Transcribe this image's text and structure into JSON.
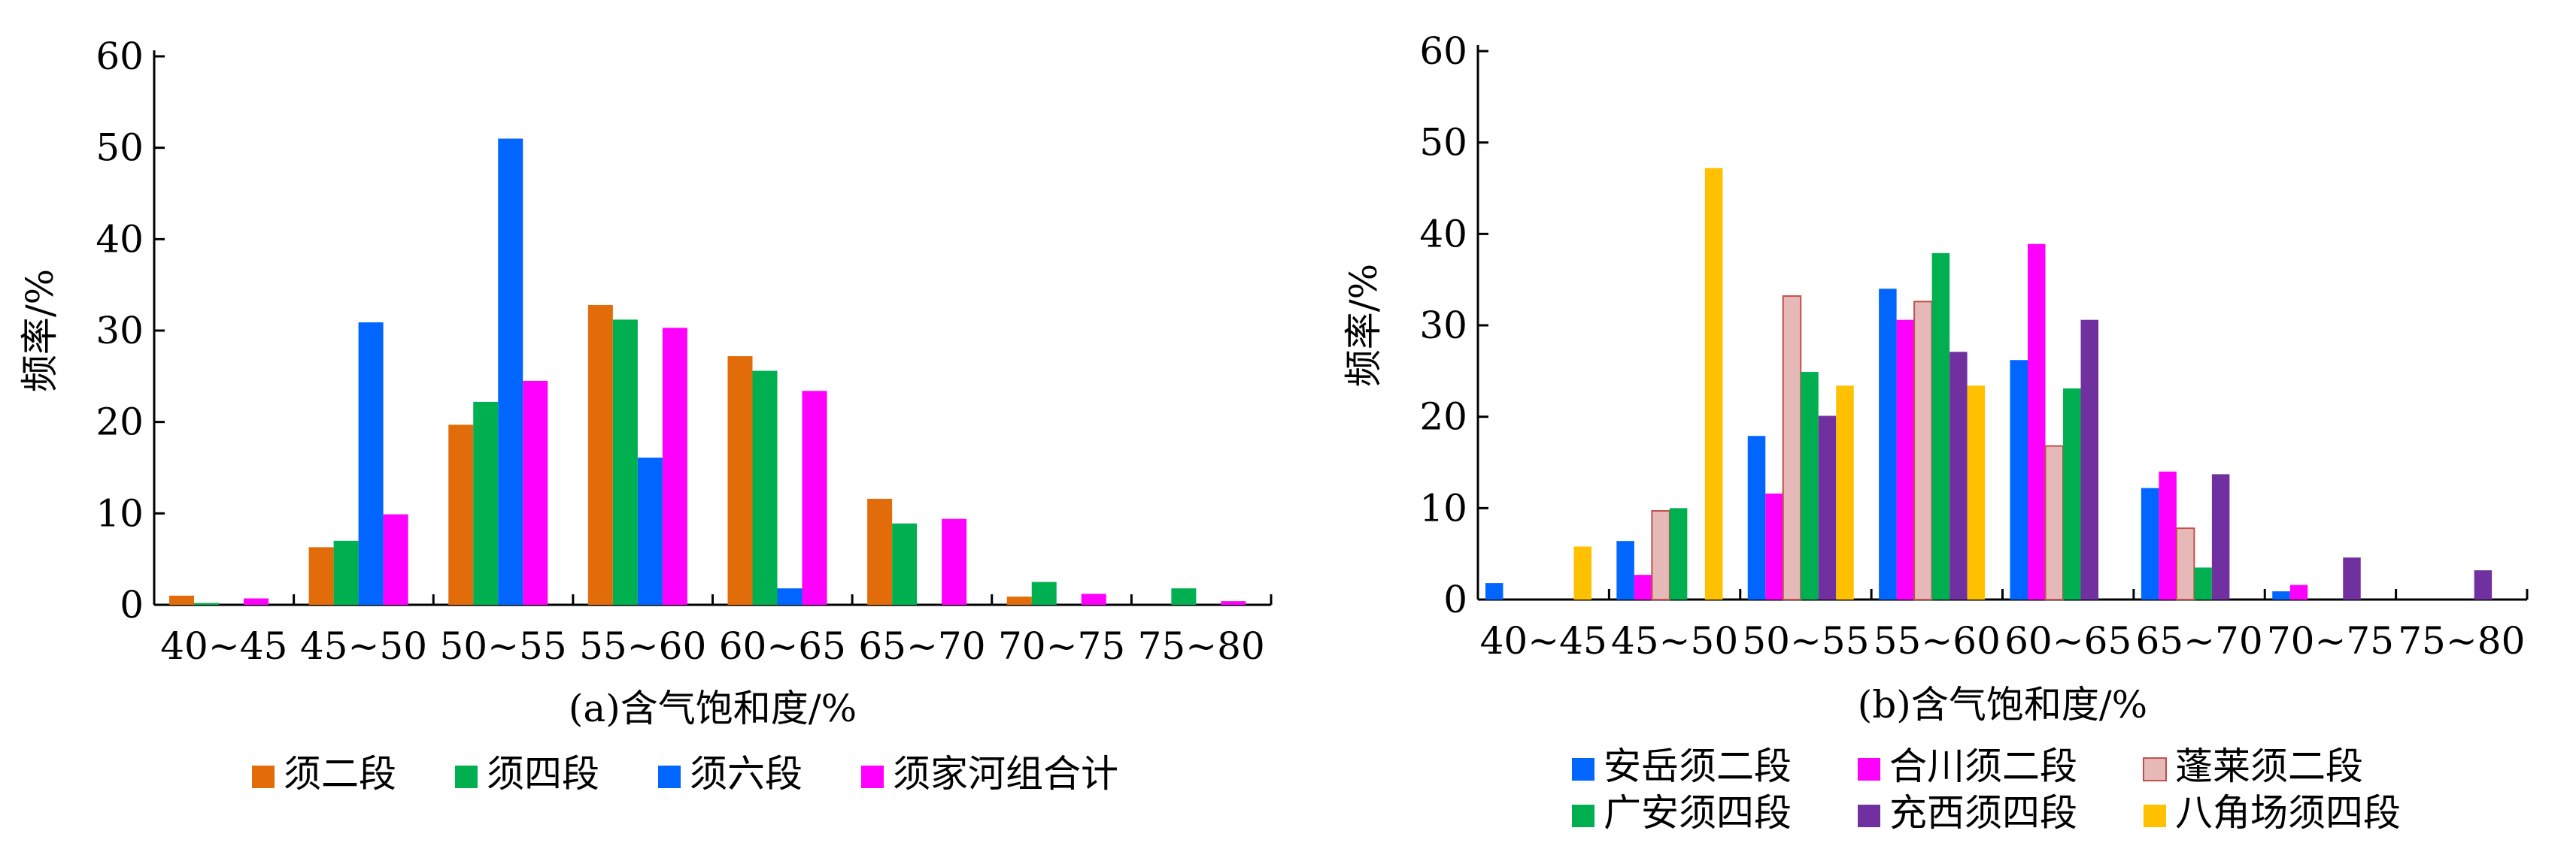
{
  "chart_data": [
    {
      "type": "bar",
      "categories": [
        "40~45",
        "45~50",
        "50~55",
        "55~60",
        "60~65",
        "65~70",
        "70~75",
        "75~80"
      ],
      "xlabel": "(a)含气饱和度/%",
      "ylabel": "频率/%",
      "ylim": [
        0,
        60
      ],
      "yticks": [
        "0",
        "10",
        "20",
        "30",
        "40",
        "50",
        "60"
      ],
      "grid": false,
      "legend_position": "bottom",
      "series": [
        {
          "name": "须二段",
          "color": "#e36c0a",
          "values": [
            1.0,
            6.3,
            19.7,
            32.8,
            27.2,
            11.6,
            0.9,
            0
          ]
        },
        {
          "name": "须四段",
          "color": "#00b050",
          "values": [
            0.2,
            7.0,
            22.2,
            31.2,
            25.6,
            8.9,
            2.5,
            1.8
          ]
        },
        {
          "name": "须六段",
          "color": "#0066ff",
          "values": [
            0,
            30.9,
            51.0,
            16.1,
            1.8,
            0,
            0,
            0
          ]
        },
        {
          "name": "须家河组合计",
          "color": "#ff00ff",
          "values": [
            0.7,
            9.9,
            24.5,
            30.3,
            23.4,
            9.4,
            1.2,
            0.4
          ]
        }
      ]
    },
    {
      "type": "bar",
      "categories": [
        "40~45",
        "45~50",
        "50~55",
        "55~60",
        "60~65",
        "65~70",
        "70~75",
        "75~80"
      ],
      "xlabel": "(b)含气饱和度/%",
      "ylabel": "频率/%",
      "ylim": [
        0,
        60
      ],
      "yticks": [
        "0",
        "10",
        "20",
        "30",
        "40",
        "50",
        "60"
      ],
      "grid": false,
      "legend_position": "bottom",
      "series": [
        {
          "name": "安岳须二段",
          "color": "#0066ff",
          "values": [
            1.8,
            6.4,
            17.9,
            34.0,
            26.2,
            12.2,
            0.9,
            0
          ]
        },
        {
          "name": "合川须二段",
          "color": "#ff00ff",
          "values": [
            0,
            2.7,
            11.6,
            30.6,
            38.9,
            14.0,
            1.6,
            0
          ]
        },
        {
          "name": "蓬莱须二段",
          "color": "#e6b8b7",
          "values": [
            0,
            9.7,
            33.2,
            32.6,
            16.8,
            7.8,
            0,
            0
          ]
        },
        {
          "name": "广安须四段",
          "color": "#00b050",
          "values": [
            0,
            10.0,
            24.9,
            37.9,
            23.1,
            3.5,
            0,
            0
          ]
        },
        {
          "name": "充西须四段",
          "color": "#7030a0",
          "values": [
            0,
            0,
            20.1,
            27.1,
            30.6,
            13.7,
            4.6,
            3.2
          ]
        },
        {
          "name": "八角场须四段",
          "color": "#ffc000",
          "values": [
            5.8,
            47.2,
            23.4,
            23.4,
            0,
            0,
            0,
            0
          ]
        }
      ]
    }
  ]
}
